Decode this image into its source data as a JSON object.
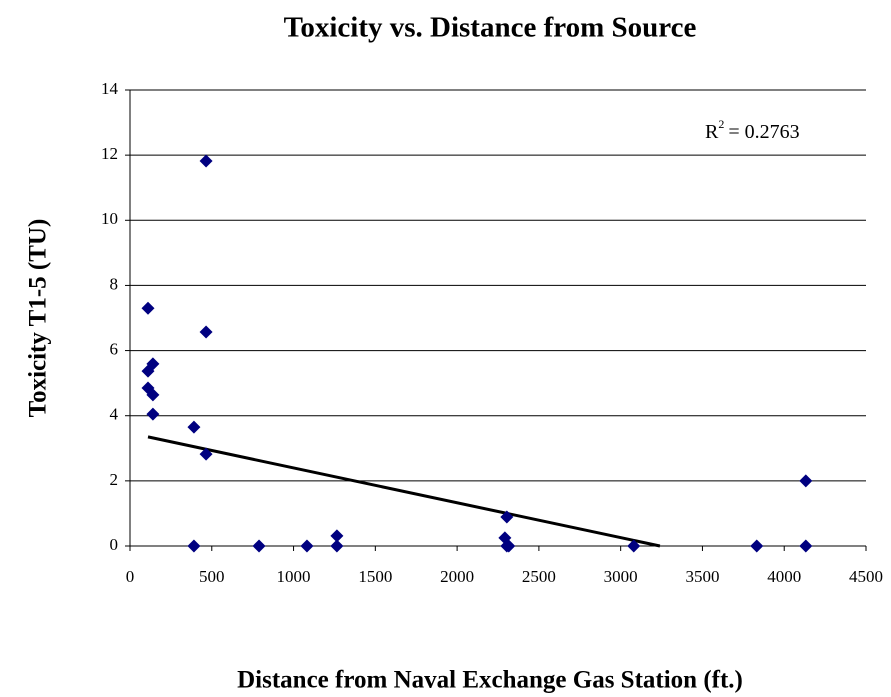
{
  "chart_data": {
    "type": "scatter",
    "title": "Toxicity vs. Distance from Source",
    "xlabel": "Distance from Naval Exchange Gas Station (ft.)",
    "ylabel": "Toxicity T1-5 (TU)",
    "annotation": {
      "base": "R",
      "sup": "2",
      "text": "= 0.2763"
    },
    "xlim": [
      0,
      4500
    ],
    "xticks": [
      0,
      500,
      1000,
      1500,
      2000,
      2500,
      3000,
      3500,
      4000,
      4500
    ],
    "ylim": [
      0,
      14
    ],
    "yticks": [
      0,
      2,
      4,
      6,
      8,
      10,
      12,
      14
    ],
    "grid": true,
    "color": "#000080",
    "x": [
      110,
      465,
      465,
      110,
      140,
      110,
      140,
      140,
      391,
      465,
      391,
      789,
      1082,
      1265,
      1265,
      2304,
      2292,
      2304,
      2316,
      3080,
      3832,
      4132,
      4132
    ],
    "y": [
      7.3,
      11.82,
      6.57,
      5.37,
      5.59,
      4.85,
      4.64,
      4.05,
      3.65,
      2.82,
      0,
      0,
      0,
      0.31,
      0,
      0.89,
      0.25,
      0,
      0,
      0,
      0,
      2.0,
      0
    ],
    "trendline": {
      "color": "#000000",
      "x": [
        110,
        3240
      ],
      "y": [
        3.35,
        0
      ]
    }
  }
}
